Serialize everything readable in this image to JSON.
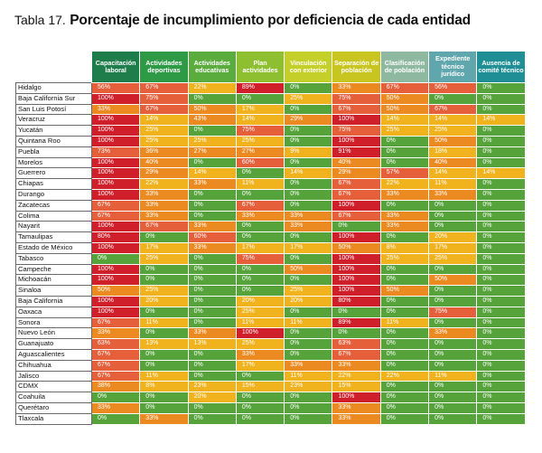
{
  "title_number": "Tabla 17.",
  "title_text": "Porcentaje de incumplimiento por deficiencia de cada entidad",
  "chart_data": {
    "type": "heatmap",
    "columns": [
      "Capacitación laboral",
      "Actividades deportivas",
      "Actividades educativas",
      "Plan actividades",
      "Vinculación con exterior",
      "Separación de población",
      "Clasificación de población",
      "Expediente técnico jurídico",
      "Ausencia de comité técnico"
    ],
    "column_colors": [
      "#1e7d4a",
      "#2f9a45",
      "#5aac3d",
      "#8dbf30",
      "#c5cf2a",
      "#c8c521",
      "#8fb8a0",
      "#5fa6ad",
      "#1f8f95"
    ],
    "rows": [
      "Hidalgo",
      "Baja California Sur",
      "San Luis Potosí",
      "Veracruz",
      "Yucatán",
      "Quintana Roo",
      "Puebla",
      "Morelos",
      "Guerrero",
      "Chiapas",
      "Durango",
      "Zacatecas",
      "Colima",
      "Nayarit",
      "Tamaulipas",
      "Estado de México",
      "Tabasco",
      "Campeche",
      "Michoacán",
      "Sinaloa",
      "Baja California",
      "Oaxaca",
      "Sonora",
      "Nuevo León",
      "Guanajuato",
      "Aguascalientes",
      "Chihuahua",
      "Jalisco",
      "CDMX",
      "Coahuila",
      "Querétaro",
      "Tlaxcala"
    ],
    "values": [
      [
        56,
        67,
        22,
        89,
        0,
        33,
        67,
        56,
        0
      ],
      [
        100,
        75,
        0,
        0,
        25,
        75,
        50,
        0,
        0
      ],
      [
        33,
        67,
        50,
        17,
        0,
        67,
        50,
        67,
        0
      ],
      [
        100,
        14,
        43,
        14,
        29,
        100,
        14,
        14,
        14
      ],
      [
        100,
        25,
        0,
        75,
        0,
        75,
        25,
        25,
        0
      ],
      [
        100,
        25,
        25,
        25,
        0,
        100,
        0,
        50,
        0
      ],
      [
        73,
        36,
        27,
        27,
        9,
        91,
        0,
        18,
        0
      ],
      [
        100,
        40,
        0,
        60,
        0,
        40,
        0,
        40,
        0
      ],
      [
        100,
        29,
        14,
        0,
        14,
        29,
        57,
        14,
        14
      ],
      [
        100,
        22,
        33,
        11,
        0,
        67,
        22,
        11,
        0
      ],
      [
        100,
        33,
        0,
        0,
        0,
        67,
        33,
        33,
        0
      ],
      [
        67,
        33,
        0,
        67,
        0,
        100,
        0,
        0,
        0
      ],
      [
        67,
        33,
        0,
        33,
        33,
        67,
        33,
        0,
        0
      ],
      [
        100,
        67,
        33,
        0,
        33,
        0,
        33,
        0,
        0
      ],
      [
        80,
        0,
        60,
        0,
        0,
        100,
        0,
        20,
        0
      ],
      [
        100,
        17,
        33,
        17,
        17,
        50,
        8,
        17,
        0
      ],
      [
        0,
        25,
        0,
        75,
        0,
        100,
        25,
        25,
        0
      ],
      [
        100,
        0,
        0,
        0,
        50,
        100,
        0,
        0,
        0
      ],
      [
        100,
        0,
        0,
        0,
        0,
        100,
        0,
        50,
        0
      ],
      [
        50,
        25,
        0,
        0,
        25,
        100,
        50,
        0,
        0
      ],
      [
        100,
        20,
        0,
        20,
        20,
        80,
        0,
        0,
        0
      ],
      [
        100,
        0,
        0,
        25,
        0,
        0,
        0,
        75,
        0
      ],
      [
        67,
        11,
        0,
        11,
        11,
        89,
        11,
        0,
        0
      ],
      [
        33,
        0,
        33,
        100,
        0,
        0,
        0,
        33,
        0
      ],
      [
        63,
        13,
        13,
        25,
        0,
        63,
        0,
        0,
        0
      ],
      [
        67,
        0,
        0,
        33,
        0,
        67,
        0,
        0,
        0
      ],
      [
        67,
        0,
        0,
        17,
        33,
        33,
        0,
        0,
        0
      ],
      [
        67,
        11,
        0,
        0,
        11,
        22,
        22,
        11,
        0
      ],
      [
        38,
        8,
        23,
        15,
        23,
        15,
        0,
        0,
        0
      ],
      [
        0,
        0,
        20,
        0,
        0,
        100,
        0,
        0,
        0
      ],
      [
        33,
        0,
        0,
        0,
        0,
        33,
        0,
        0,
        0
      ],
      [
        0,
        33,
        0,
        0,
        0,
        33,
        0,
        0,
        0
      ]
    ],
    "unit": "%",
    "color_scale": {
      "0": "#56a33c",
      "1-25": "#f0b21d",
      "26-50": "#ec8a22",
      "51-75": "#e45f3a",
      "76-100": "#cf1f2a"
    }
  }
}
